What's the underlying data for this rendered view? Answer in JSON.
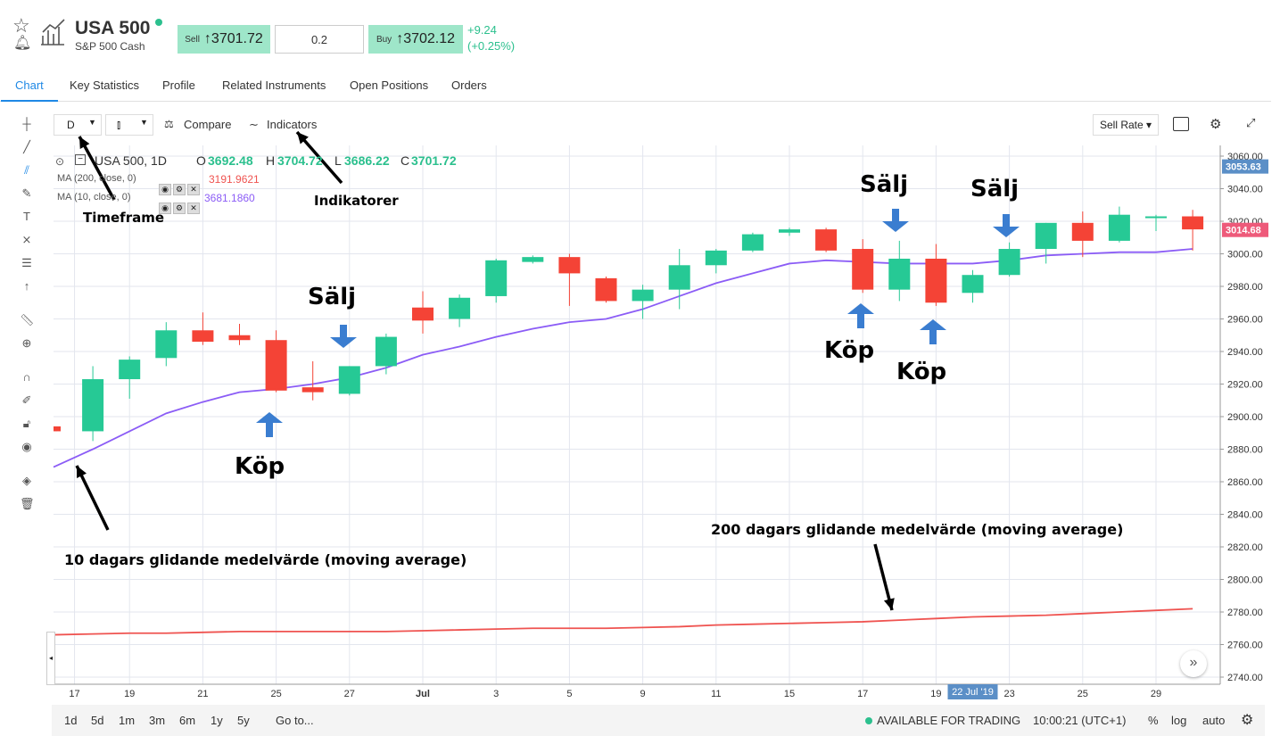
{
  "header": {
    "title": "USA 500",
    "subtitle": "S&P 500 Cash",
    "sell_label": "Sell",
    "sell_price": "↑3701.72",
    "quantity": "0.2",
    "buy_label": "Buy",
    "buy_price": "↑3702.12",
    "change_abs": "+9.24",
    "change_pct": "(+0.25%)"
  },
  "tabs": [
    "Chart",
    "Key Statistics",
    "Profile",
    "Related Instruments",
    "Open Positions",
    "Orders"
  ],
  "toolbar": {
    "timeframe": "D",
    "compare": "Compare",
    "indicators": "Indicators",
    "sell_rate": "Sell Rate"
  },
  "legend": {
    "symbol": "USA 500, 1D",
    "o_label": "O",
    "o_val": "3692.48",
    "h_label": "H",
    "h_val": "3704.72",
    "l_label": "L",
    "l_val": "3686.22",
    "c_label": "C",
    "c_val": "3701.72",
    "ma200_label": "MA (200, close, 0)",
    "ma200_val": "3191.9621",
    "ma10_label": "MA (10, close, 0)",
    "ma10_val": "3681.1860"
  },
  "annotations": {
    "timeframe": "Timeframe",
    "indikatorer": "Indikatorer",
    "salj": "Sälj",
    "kop": "Köp",
    "ma10_note": "10 dagars glidande medelvärde (moving average)",
    "ma200_note": "200 dagars glidande medelvärde (moving average)"
  },
  "price_tags": {
    "upper": "3053.63",
    "lower": "3014.68"
  },
  "date_tag": "22 Jul '19",
  "chart_data": {
    "type": "candlestick",
    "y_ticks": [
      2740,
      2760,
      2780,
      2800,
      2820,
      2840,
      2860,
      2880,
      2900,
      2920,
      2940,
      2960,
      2980,
      3000,
      3020,
      3040,
      3060
    ],
    "y_tick_labels": [
      "2740.00",
      "2760.00",
      "2780.00",
      "2800.00",
      "2820.00",
      "2840.00",
      "2860.00",
      "2880.00",
      "2900.00",
      "2920.00",
      "2940.00",
      "2960.00",
      "2980.00",
      "3000.00",
      "3020.00",
      "3040.00",
      "3060.00"
    ],
    "x_tick_labels": [
      "17",
      "19",
      "21",
      "25",
      "27",
      "Jul",
      "3",
      "5",
      "9",
      "11",
      "15",
      "17",
      "19",
      "23",
      "25",
      "29"
    ],
    "candles": [
      {
        "d": "Jun 14",
        "o": 2894,
        "h": 2894,
        "l": 2891,
        "c": 2891
      },
      {
        "d": "Jun 18",
        "o": 2891,
        "h": 2931,
        "l": 2885,
        "c": 2923
      },
      {
        "d": "Jun 19",
        "o": 2923,
        "h": 2937,
        "l": 2911,
        "c": 2935
      },
      {
        "d": "Jun 20",
        "o": 2936,
        "h": 2958,
        "l": 2931,
        "c": 2953
      },
      {
        "d": "Jun 21",
        "o": 2953,
        "h": 2964,
        "l": 2944,
        "c": 2946
      },
      {
        "d": "Jun 24",
        "o": 2950,
        "h": 2957,
        "l": 2944,
        "c": 2947
      },
      {
        "d": "Jun 25",
        "o": 2947,
        "h": 2953,
        "l": 2915,
        "c": 2916
      },
      {
        "d": "Jun 26",
        "o": 2918,
        "h": 2934,
        "l": 2910,
        "c": 2915
      },
      {
        "d": "Jun 27",
        "o": 2914,
        "h": 2931,
        "l": 2913,
        "c": 2931
      },
      {
        "d": "Jun 28",
        "o": 2931,
        "h": 2951,
        "l": 2926,
        "c": 2949
      },
      {
        "d": "Jul 1",
        "o": 2967,
        "h": 2977,
        "l": 2951,
        "c": 2959
      },
      {
        "d": "Jul 2",
        "o": 2960,
        "h": 2975,
        "l": 2955,
        "c": 2973
      },
      {
        "d": "Jul 3",
        "o": 2974,
        "h": 2997,
        "l": 2970,
        "c": 2996
      },
      {
        "d": "Jul 4",
        "o": 2995,
        "h": 2999,
        "l": 2994,
        "c": 2998
      },
      {
        "d": "Jul 5",
        "o": 2998,
        "h": 3000,
        "l": 2968,
        "c": 2988
      },
      {
        "d": "Jul 8",
        "o": 2985,
        "h": 2986,
        "l": 2970,
        "c": 2971
      },
      {
        "d": "Jul 9",
        "o": 2971,
        "h": 2981,
        "l": 2960,
        "c": 2978
      },
      {
        "d": "Jul 10",
        "o": 2978,
        "h": 3003,
        "l": 2966,
        "c": 2993
      },
      {
        "d": "Jul 11",
        "o": 2993,
        "h": 3003,
        "l": 2988,
        "c": 3002
      },
      {
        "d": "Jul 12",
        "o": 3002,
        "h": 3013,
        "l": 3001,
        "c": 3012
      },
      {
        "d": "Jul 15",
        "o": 3013,
        "h": 3016,
        "l": 3011,
        "c": 3015
      },
      {
        "d": "Jul 16",
        "o": 3015,
        "h": 3016,
        "l": 3001,
        "c": 3002
      },
      {
        "d": "Jul 17",
        "o": 3003,
        "h": 3009,
        "l": 2976,
        "c": 2978
      },
      {
        "d": "Jul 18",
        "o": 2978,
        "h": 3008,
        "l": 2971,
        "c": 2997
      },
      {
        "d": "Jul 19",
        "o": 2997,
        "h": 3006,
        "l": 2968,
        "c": 2970
      },
      {
        "d": "Jul 22",
        "o": 2976,
        "h": 2990,
        "l": 2970,
        "c": 2987
      },
      {
        "d": "Jul 23",
        "o": 2987,
        "h": 3007,
        "l": 2986,
        "c": 3003
      },
      {
        "d": "Jul 24",
        "o": 3003,
        "h": 3019,
        "l": 2994,
        "c": 3019
      },
      {
        "d": "Jul 25",
        "o": 3019,
        "h": 3026,
        "l": 2998,
        "c": 3008
      },
      {
        "d": "Jul 26",
        "o": 3008,
        "h": 3029,
        "l": 3007,
        "c": 3024
      },
      {
        "d": "Jul 29",
        "o": 3023,
        "h": 3024,
        "l": 3014,
        "c": 3023
      },
      {
        "d": "Jul 30",
        "o": 3023,
        "h": 3027,
        "l": 3002,
        "c": 3015
      }
    ],
    "ma10": [
      2869,
      2880,
      2891,
      2902,
      2909,
      2915,
      2917,
      2920,
      2924,
      2930,
      2938,
      2943,
      2949,
      2954,
      2958,
      2960,
      2966,
      2974,
      2982,
      2988,
      2994,
      2996,
      2995,
      2994,
      2994,
      2994,
      2996,
      2999,
      3000,
      3001,
      3001,
      3003
    ],
    "ma200": [
      2766,
      2766.5,
      2767,
      2767,
      2767.5,
      2768,
      2768,
      2768,
      2768,
      2768,
      2768.5,
      2769,
      2769.5,
      2770,
      2770,
      2770,
      2770.5,
      2771,
      2772,
      2772.5,
      2773,
      2773.5,
      2774,
      2775,
      2776,
      2777,
      2777.5,
      2778,
      2779,
      2780,
      2781,
      2782
    ]
  },
  "bottom": {
    "ranges": [
      "1d",
      "5d",
      "1m",
      "3m",
      "6m",
      "1y",
      "5y"
    ],
    "goto": "Go to...",
    "status": "AVAILABLE FOR TRADING",
    "time": "10:00:21 (UTC+1)",
    "pct": "%",
    "log": "log",
    "auto": "auto"
  },
  "colors": {
    "up": "#26c995",
    "down": "#f44336",
    "ma10": "#8b5cf6",
    "ma200": "#ef5350",
    "accent": "#1e88e5",
    "arrow_blue": "#3a7dd0"
  }
}
